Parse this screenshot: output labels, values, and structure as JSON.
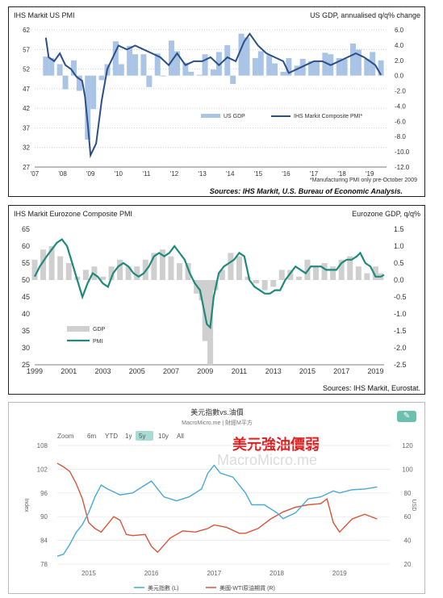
{
  "chart_data": [
    {
      "type": "bar+line",
      "title_left": "IHS Markit US PMI",
      "title_right": "US GDP, annualised q/q% change",
      "left_ticks": [
        62,
        57,
        52,
        47,
        42,
        37,
        32,
        27
      ],
      "right_ticks": [
        "6.0",
        "4.0",
        "2.0",
        "0.0",
        "-2.0",
        "-4.0",
        "-6.0",
        "-8.0",
        "-10.0",
        "-12.0"
      ],
      "x_ticks": [
        "'07",
        "'08",
        "'09",
        "'10",
        "'11",
        "'12",
        "'13",
        "'14",
        "'15",
        "'16",
        "'17",
        "'18",
        "'19"
      ],
      "ylim_left": [
        27,
        62
      ],
      "ylim_right": [
        -12,
        6
      ],
      "legend": [
        "US GDP",
        "IHS Markit Composite PMI*"
      ],
      "footnote": "*Manufacturing PMI only pre-October 2009",
      "source": "Sources:  IHS Markit, U.S. Bureau of Economic Analysis.",
      "series": [
        {
          "name": "IHS Markit Composite PMI*",
          "color": "#2b4f86",
          "x": [
            2007.4,
            2007.5,
            2007.7,
            2007.9,
            2008.1,
            2008.3,
            2008.5,
            2008.7,
            2008.8,
            2008.9,
            2009.0,
            2009.2,
            2009.4,
            2009.6,
            2009.8,
            2010.0,
            2010.3,
            2010.6,
            2010.9,
            2011.2,
            2011.5,
            2011.8,
            2012.1,
            2012.4,
            2012.7,
            2013.0,
            2013.3,
            2013.6,
            2013.9,
            2014.2,
            2014.5,
            2014.7,
            2015.0,
            2015.3,
            2015.6,
            2015.9,
            2016.1,
            2016.4,
            2016.7,
            2017.0,
            2017.3,
            2017.6,
            2017.9,
            2018.2,
            2018.5,
            2018.8,
            2019.0,
            2019.2,
            2019.4
          ],
          "values": [
            60,
            55,
            54,
            56,
            53,
            52,
            50,
            49,
            45,
            38,
            30,
            33,
            44,
            52,
            55,
            58,
            57,
            58,
            57,
            56,
            55,
            53,
            56,
            53,
            54,
            54,
            55,
            53,
            55,
            54,
            59,
            61,
            58,
            56,
            55,
            54,
            51,
            52,
            53,
            54,
            54,
            53,
            54,
            55,
            56,
            55,
            54,
            53,
            50.5
          ]
        },
        {
          "name": "US GDP",
          "color": "#aac4e6",
          "x": [
            2007.4,
            2007.6,
            2007.9,
            2008.1,
            2008.4,
            2008.6,
            2008.9,
            2009.1,
            2009.4,
            2009.6,
            2009.9,
            2010.1,
            2010.4,
            2010.6,
            2010.9,
            2011.1,
            2011.4,
            2011.6,
            2011.9,
            2012.1,
            2012.4,
            2012.6,
            2012.9,
            2013.1,
            2013.4,
            2013.6,
            2013.9,
            2014.1,
            2014.4,
            2014.6,
            2014.9,
            2015.1,
            2015.4,
            2015.6,
            2015.9,
            2016.1,
            2016.4,
            2016.6,
            2016.9,
            2017.1,
            2017.4,
            2017.6,
            2017.9,
            2018.1,
            2018.4,
            2018.6,
            2018.9,
            2019.1,
            2019.4
          ],
          "values": [
            2.5,
            2.3,
            1.5,
            -1.8,
            2.0,
            -2.0,
            -8.4,
            -4.4,
            -0.6,
            1.5,
            4.5,
            1.5,
            3.9,
            2.8,
            2.8,
            -1.5,
            2.9,
            -0.1,
            4.6,
            3.2,
            1.7,
            0.5,
            0.1,
            2.8,
            0.8,
            3.1,
            4.0,
            -1.1,
            5.5,
            5.0,
            2.3,
            3.2,
            2.7,
            1.6,
            0.5,
            2.3,
            1.3,
            2.2,
            1.9,
            1.8,
            3.0,
            2.8,
            2.3,
            2.2,
            4.2,
            3.4,
            2.2,
            3.1,
            2.0
          ]
        }
      ]
    },
    {
      "type": "bar+line",
      "title_left": "IHS Markit Eurozone Composite PMI",
      "title_right": "Eurozone GDP, q/q%",
      "left_ticks": [
        65,
        60,
        55,
        50,
        45,
        40,
        35,
        30,
        25
      ],
      "right_ticks": [
        "1.5",
        "1.0",
        "0.5",
        "0.0",
        "-0.5",
        "-1.0",
        "-1.5",
        "-2.0",
        "-2.5"
      ],
      "x_ticks": [
        "1999",
        "2001",
        "2003",
        "2005",
        "2007",
        "2009",
        "2011",
        "2013",
        "2015",
        "2017",
        "2019"
      ],
      "ylim_left": [
        25,
        65
      ],
      "ylim_right": [
        -2.5,
        1.5
      ],
      "legend": [
        "GDP",
        "PMI"
      ],
      "source": "Sources: IHS Markit, Eurostat.",
      "series": [
        {
          "name": "PMI",
          "color": "#1f8a7a",
          "x": [
            1999.0,
            1999.3,
            1999.7,
            2000.0,
            2000.3,
            2000.6,
            2000.9,
            2001.2,
            2001.5,
            2001.8,
            2002.1,
            2002.4,
            2002.7,
            2003.0,
            2003.3,
            2003.6,
            2003.9,
            2004.2,
            2004.5,
            2004.8,
            2005.1,
            2005.4,
            2005.7,
            2006.0,
            2006.3,
            2006.6,
            2006.9,
            2007.2,
            2007.5,
            2007.8,
            2008.1,
            2008.4,
            2008.7,
            2008.9,
            2009.1,
            2009.3,
            2009.5,
            2009.8,
            2010.1,
            2010.4,
            2010.7,
            2011.0,
            2011.3,
            2011.6,
            2011.9,
            2012.2,
            2012.5,
            2012.8,
            2013.1,
            2013.4,
            2013.7,
            2014.0,
            2014.3,
            2014.6,
            2014.9,
            2015.2,
            2015.5,
            2015.8,
            2016.1,
            2016.4,
            2016.7,
            2017.0,
            2017.3,
            2017.6,
            2017.9,
            2018.1,
            2018.4,
            2018.7,
            2019.0,
            2019.3,
            2019.5
          ],
          "values": [
            51,
            54,
            57,
            59,
            61,
            62,
            60,
            55,
            50,
            45,
            49,
            52,
            51,
            49,
            48,
            52,
            54,
            55,
            54,
            52,
            51,
            52,
            54,
            57,
            58,
            57,
            58,
            60,
            58,
            56,
            52,
            49,
            47,
            42,
            37,
            36,
            45,
            52,
            54,
            55,
            56,
            58,
            57,
            50,
            48,
            47,
            46,
            46,
            47,
            47,
            50,
            52,
            54,
            53,
            52,
            54,
            54,
            54,
            53,
            53,
            53,
            55,
            56,
            56,
            57,
            58,
            55,
            54,
            51,
            51,
            51.5
          ]
        },
        {
          "name": "GDP",
          "color": "#cfcfcf",
          "x": [
            1999.0,
            1999.5,
            2000.0,
            2000.5,
            2001.0,
            2001.5,
            2002.0,
            2002.5,
            2003.0,
            2003.5,
            2004.0,
            2004.5,
            2005.0,
            2005.5,
            2006.0,
            2006.5,
            2007.0,
            2007.5,
            2008.0,
            2008.5,
            2008.8,
            2009.0,
            2009.3,
            2009.6,
            2010.0,
            2010.5,
            2011.0,
            2011.5,
            2012.0,
            2012.5,
            2013.0,
            2013.5,
            2014.0,
            2014.5,
            2015.0,
            2015.5,
            2016.0,
            2016.5,
            2017.0,
            2017.5,
            2018.0,
            2018.5,
            2019.0,
            2019.3
          ],
          "values": [
            0.6,
            0.9,
            1.0,
            0.7,
            0.5,
            0.1,
            0.3,
            0.4,
            0.1,
            0.4,
            0.6,
            0.4,
            0.4,
            0.6,
            0.8,
            0.9,
            0.7,
            0.5,
            0.5,
            -0.4,
            -0.6,
            -1.8,
            -2.5,
            -0.3,
            0.3,
            0.8,
            0.7,
            0.1,
            -0.1,
            -0.3,
            -0.2,
            0.3,
            0.3,
            0.1,
            0.6,
            0.4,
            0.5,
            0.4,
            0.6,
            0.7,
            0.4,
            0.2,
            0.4,
            0.2
          ]
        }
      ]
    },
    {
      "type": "line",
      "title": "美元指數vs.油價",
      "subtitle": "MacroMicro.me | 財經M平方",
      "overlay_label": "美元強油價弱",
      "watermark": "MacroMicro.me",
      "ylabel_left": "Index",
      "ylabel_right": "USD",
      "left_ticks": [
        108,
        102,
        96,
        90,
        84,
        78
      ],
      "right_ticks": [
        120,
        100,
        80,
        60,
        40,
        20
      ],
      "x_ticks": [
        "2015",
        "2016",
        "2017",
        "2018",
        "2019"
      ],
      "ylim_left": [
        78,
        108
      ],
      "ylim_right": [
        20,
        120
      ],
      "xlim": [
        2014.5,
        2019.8
      ],
      "zoom": {
        "label": "Zoom",
        "options": [
          "6m",
          "YTD",
          "1y",
          "5y",
          "10y",
          "All"
        ],
        "selected": "5y"
      },
      "series": [
        {
          "name": "美元指數 (L)",
          "color": "#4aa9d6",
          "x": [
            2014.5,
            2014.6,
            2014.7,
            2014.8,
            2014.9,
            2015.0,
            2015.1,
            2015.2,
            2015.3,
            2015.5,
            2015.7,
            2015.9,
            2016.0,
            2016.2,
            2016.4,
            2016.6,
            2016.8,
            2016.9,
            2017.0,
            2017.1,
            2017.3,
            2017.5,
            2017.6,
            2017.8,
            2018.0,
            2018.1,
            2018.3,
            2018.5,
            2018.7,
            2018.9,
            2019.0,
            2019.2,
            2019.4,
            2019.6
          ],
          "values": [
            80,
            80.5,
            83,
            86,
            88,
            91,
            95,
            98,
            97,
            95.5,
            96,
            98,
            99,
            95,
            94,
            95,
            97,
            101,
            103,
            101,
            100,
            96,
            93,
            93,
            91,
            89.5,
            91,
            94.5,
            95,
            96.5,
            96,
            96.8,
            97,
            97.5
          ]
        },
        {
          "name": "美國-WTI原油期貨 (R)",
          "color": "#d4573b",
          "x": [
            2014.5,
            2014.6,
            2014.7,
            2014.8,
            2014.9,
            2015.0,
            2015.1,
            2015.2,
            2015.4,
            2015.5,
            2015.6,
            2015.7,
            2015.9,
            2016.0,
            2016.1,
            2016.3,
            2016.5,
            2016.7,
            2016.9,
            2017.0,
            2017.2,
            2017.4,
            2017.5,
            2017.7,
            2017.9,
            2018.1,
            2018.3,
            2018.5,
            2018.7,
            2018.8,
            2018.9,
            2019.0,
            2019.2,
            2019.4,
            2019.6
          ],
          "values": [
            105,
            102,
            98,
            88,
            75,
            55,
            50,
            47,
            60,
            57,
            45,
            44,
            45,
            35,
            30,
            42,
            48,
            47,
            50,
            53,
            51,
            46,
            46,
            50,
            58,
            64,
            68,
            70,
            71,
            75,
            55,
            47,
            58,
            62,
            58
          ]
        }
      ]
    }
  ]
}
